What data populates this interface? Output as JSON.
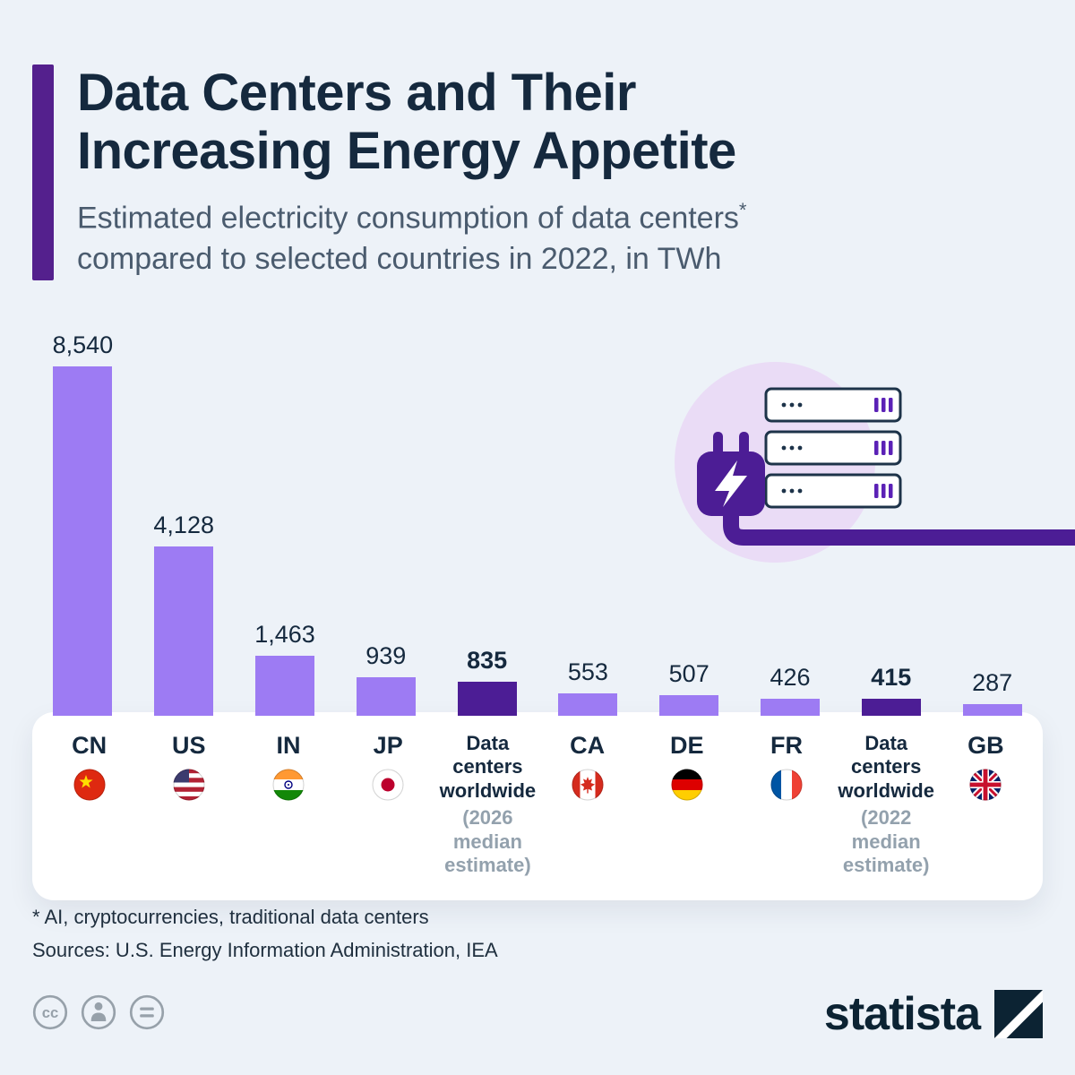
{
  "header": {
    "title_line1": "Data Centers and Their",
    "title_line2": "Increasing Energy Appetite",
    "subtitle_line1": "Estimated electricity consumption of data centers",
    "subtitle_asterisk": "*",
    "subtitle_line2": "compared to selected countries in 2022, in TWh"
  },
  "chart_data": {
    "type": "bar",
    "title": "Data Centers and Their Increasing Energy Appetite",
    "subtitle": "Estimated electricity consumption of data centers* compared to selected countries in 2022, in TWh",
    "unit": "TWh",
    "ylim": [
      0,
      8540
    ],
    "grid": false,
    "legend": "none",
    "categories": [
      "CN",
      "US",
      "IN",
      "JP",
      "Data centers worldwide (2026 median estimate)",
      "CA",
      "DE",
      "FR",
      "Data centers worldwide (2022 median estimate)",
      "GB"
    ],
    "values": [
      8540,
      4128,
      1463,
      939,
      835,
      553,
      507,
      426,
      415,
      287
    ],
    "bars": [
      {
        "label": "CN",
        "flag": "cn",
        "value": 8540,
        "display": "8,540",
        "highlight": false
      },
      {
        "label": "US",
        "flag": "us",
        "value": 4128,
        "display": "4,128",
        "highlight": false
      },
      {
        "label": "IN",
        "flag": "in",
        "value": 1463,
        "display": "1,463",
        "highlight": false
      },
      {
        "label": "JP",
        "flag": "jp",
        "value": 939,
        "display": "939",
        "highlight": false
      },
      {
        "label": "Data centers worldwide",
        "sublabel": "(2026 median estimate)",
        "value": 835,
        "display": "835",
        "highlight": true
      },
      {
        "label": "CA",
        "flag": "ca",
        "value": 553,
        "display": "553",
        "highlight": false
      },
      {
        "label": "DE",
        "flag": "de",
        "value": 507,
        "display": "507",
        "highlight": false
      },
      {
        "label": "FR",
        "flag": "fr",
        "value": 426,
        "display": "426",
        "highlight": false
      },
      {
        "label": "Data centers worldwide",
        "sublabel": "(2022 median estimate)",
        "value": 415,
        "display": "415",
        "highlight": true
      },
      {
        "label": "GB",
        "flag": "gb",
        "value": 287,
        "display": "287",
        "highlight": false
      }
    ],
    "colors": {
      "bar": "#9d7bf3",
      "highlight": "#4c1d95",
      "background": "#edf2f8",
      "title": "#15293e",
      "subtitle": "#4a5b6e",
      "sublabel_gray": "#93a1ad",
      "accent": "#54208d"
    }
  },
  "footnotes": {
    "asterisk_note": "* AI, cryptocurrencies, traditional data centers",
    "sources": "Sources: U.S. Energy Information Administration, IEA"
  },
  "footer": {
    "brand": "statista",
    "license_icons": [
      "cc-icon",
      "attribution-person-icon",
      "no-derivatives-equals-icon"
    ]
  }
}
